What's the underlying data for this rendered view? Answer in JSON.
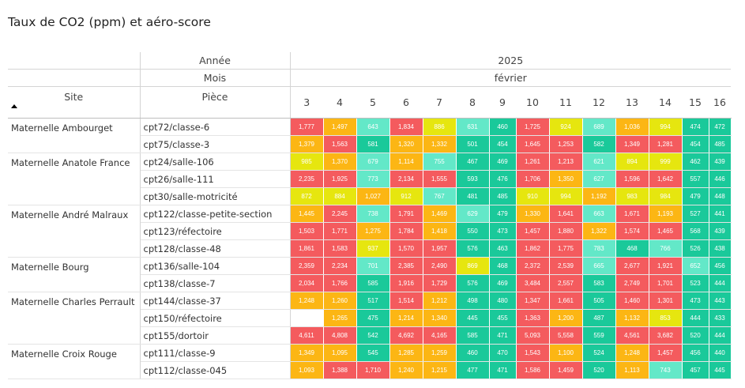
{
  "title": "Taux de CO2 (ppm) et aéro-score",
  "header": {
    "annee_label": "Année",
    "mois_label": "Mois",
    "site_label": "Site",
    "piece_label": "Pièce",
    "year": "2025",
    "month": "février",
    "sort_icon": "sort-ascending-icon"
  },
  "chart_data": {
    "type": "table",
    "columns": [
      "3",
      "4",
      "5",
      "6",
      "7",
      "8",
      "9",
      "10",
      "11",
      "12",
      "13",
      "14",
      "15",
      "16"
    ],
    "level_colors": {
      "red": "#f45b5e",
      "orange": "#fcb614",
      "yellow": "#e6e60f",
      "lightgreen": "#63e8c8",
      "green": "#1ac99a",
      "empty": "#ffffff"
    },
    "groups": [
      {
        "site": "Maternelle Ambourget",
        "rows": [
          {
            "piece": "cpt72/classe-6",
            "values": [
              "1,777",
              "1,497",
              "643",
              "1,834",
              "886",
              "631",
              "460",
              "1,725",
              "924",
              "689",
              "1,036",
              "994",
              "474",
              "472"
            ],
            "levels": [
              "red",
              "orange",
              "lightgreen",
              "red",
              "yellow",
              "lightgreen",
              "green",
              "red",
              "yellow",
              "lightgreen",
              "orange",
              "yellow",
              "green",
              "green"
            ]
          },
          {
            "piece": "cpt75/classe-3",
            "values": [
              "1,379",
              "1,563",
              "581",
              "1,320",
              "1,332",
              "501",
              "454",
              "1,645",
              "1,253",
              "582",
              "1,349",
              "1,281",
              "454",
              "485"
            ],
            "levels": [
              "orange",
              "red",
              "green",
              "orange",
              "orange",
              "green",
              "green",
              "red",
              "red",
              "green",
              "red",
              "red",
              "green",
              "green"
            ]
          }
        ]
      },
      {
        "site": "Maternelle Anatole France",
        "rows": [
          {
            "piece": "cpt24/salle-106",
            "values": [
              "985",
              "1,370",
              "679",
              "1,114",
              "755",
              "467",
              "469",
              "1,261",
              "1,213",
              "621",
              "894",
              "999",
              "462",
              "439"
            ],
            "levels": [
              "yellow",
              "orange",
              "lightgreen",
              "orange",
              "lightgreen",
              "green",
              "green",
              "red",
              "red",
              "lightgreen",
              "yellow",
              "yellow",
              "green",
              "green"
            ]
          },
          {
            "piece": "cpt26/salle-111",
            "values": [
              "2,235",
              "1,925",
              "773",
              "2,134",
              "1,555",
              "593",
              "476",
              "1,706",
              "1,350",
              "627",
              "1,596",
              "1,642",
              "557",
              "446"
            ],
            "levels": [
              "red",
              "red",
              "lightgreen",
              "red",
              "red",
              "green",
              "green",
              "red",
              "orange",
              "lightgreen",
              "red",
              "red",
              "green",
              "green"
            ]
          },
          {
            "piece": "cpt30/salle-motricité",
            "values": [
              "872",
              "884",
              "1,027",
              "912",
              "767",
              "481",
              "485",
              "910",
              "994",
              "1,192",
              "983",
              "984",
              "479",
              "448"
            ],
            "levels": [
              "yellow",
              "yellow",
              "orange",
              "yellow",
              "lightgreen",
              "green",
              "green",
              "yellow",
              "yellow",
              "orange",
              "yellow",
              "yellow",
              "green",
              "green"
            ]
          }
        ]
      },
      {
        "site": "Maternelle André Malraux",
        "rows": [
          {
            "piece": "cpt122/classe-petite-section",
            "values": [
              "1,445",
              "2,245",
              "738",
              "1,791",
              "1,469",
              "629",
              "479",
              "1,330",
              "1,641",
              "663",
              "1,671",
              "1,193",
              "527",
              "441"
            ],
            "levels": [
              "orange",
              "red",
              "lightgreen",
              "red",
              "orange",
              "lightgreen",
              "green",
              "orange",
              "red",
              "lightgreen",
              "red",
              "orange",
              "green",
              "green"
            ]
          },
          {
            "piece": "cpt123/réfectoire",
            "values": [
              "1,503",
              "1,771",
              "1,275",
              "1,784",
              "1,418",
              "550",
              "473",
              "1,457",
              "1,880",
              "1,322",
              "1,574",
              "1,465",
              "568",
              "439"
            ],
            "levels": [
              "red",
              "red",
              "orange",
              "red",
              "orange",
              "green",
              "green",
              "red",
              "red",
              "orange",
              "red",
              "red",
              "green",
              "green"
            ]
          },
          {
            "piece": "cpt128/classe-48",
            "values": [
              "1,861",
              "1,583",
              "937",
              "1,570",
              "1,957",
              "576",
              "463",
              "1,862",
              "1,775",
              "783",
              "468",
              "766",
              "526",
              "438"
            ],
            "levels": [
              "red",
              "red",
              "yellow",
              "red",
              "red",
              "green",
              "green",
              "red",
              "red",
              "lightgreen",
              "green",
              "lightgreen",
              "green",
              "green"
            ]
          }
        ]
      },
      {
        "site": "Maternelle Bourg",
        "rows": [
          {
            "piece": "cpt136/salle-104",
            "values": [
              "2,359",
              "2,234",
              "701",
              "2,385",
              "2,490",
              "869",
              "468",
              "2,372",
              "2,539",
              "665",
              "2,677",
              "1,921",
              "652",
              "456"
            ],
            "levels": [
              "red",
              "red",
              "lightgreen",
              "red",
              "red",
              "yellow",
              "green",
              "red",
              "red",
              "lightgreen",
              "red",
              "red",
              "lightgreen",
              "green"
            ]
          },
          {
            "piece": "cpt138/classe-7",
            "values": [
              "2,034",
              "1,766",
              "585",
              "1,916",
              "1,729",
              "576",
              "469",
              "3,484",
              "2,557",
              "583",
              "2,749",
              "1,701",
              "523",
              "444"
            ],
            "levels": [
              "red",
              "red",
              "green",
              "red",
              "red",
              "green",
              "green",
              "red",
              "red",
              "green",
              "red",
              "red",
              "green",
              "green"
            ]
          }
        ]
      },
      {
        "site": "Maternelle Charles Perrault",
        "rows": [
          {
            "piece": "cpt144/classe-37",
            "values": [
              "1,248",
              "1,260",
              "517",
              "1,514",
              "1,212",
              "498",
              "480",
              "1,347",
              "1,661",
              "505",
              "1,460",
              "1,301",
              "473",
              "443"
            ],
            "levels": [
              "orange",
              "orange",
              "green",
              "red",
              "orange",
              "green",
              "green",
              "red",
              "red",
              "green",
              "red",
              "red",
              "green",
              "green"
            ]
          },
          {
            "piece": "cpt150/réfectoire",
            "values": [
              "",
              "1,265",
              "475",
              "1,214",
              "1,340",
              "445",
              "455",
              "1,363",
              "1,200",
              "487",
              "1,132",
              "853",
              "444",
              "433"
            ],
            "levels": [
              "empty",
              "orange",
              "green",
              "orange",
              "orange",
              "green",
              "green",
              "red",
              "orange",
              "green",
              "orange",
              "yellow",
              "green",
              "green"
            ]
          },
          {
            "piece": "cpt155/dortoir",
            "values": [
              "4,611",
              "4,808",
              "542",
              "4,692",
              "4,165",
              "585",
              "471",
              "5,093",
              "5,558",
              "559",
              "4,561",
              "3,682",
              "520",
              "444"
            ],
            "levels": [
              "red",
              "red",
              "green",
              "red",
              "red",
              "green",
              "green",
              "red",
              "red",
              "green",
              "red",
              "red",
              "green",
              "green"
            ]
          }
        ]
      },
      {
        "site": "Maternelle Croix Rouge",
        "rows": [
          {
            "piece": "cpt111/classe-9",
            "values": [
              "1,349",
              "1,095",
              "545",
              "1,285",
              "1,259",
              "460",
              "470",
              "1,543",
              "1,100",
              "524",
              "1,248",
              "1,457",
              "456",
              "440"
            ],
            "levels": [
              "orange",
              "orange",
              "green",
              "orange",
              "orange",
              "green",
              "green",
              "red",
              "orange",
              "green",
              "orange",
              "red",
              "green",
              "green"
            ]
          },
          {
            "piece": "cpt112/classe-045",
            "values": [
              "1,093",
              "1,388",
              "1,710",
              "1,240",
              "1,215",
              "477",
              "471",
              "1,586",
              "1,459",
              "520",
              "1,113",
              "743",
              "457",
              "445"
            ],
            "levels": [
              "orange",
              "red",
              "red",
              "orange",
              "orange",
              "green",
              "green",
              "red",
              "red",
              "green",
              "orange",
              "lightgreen",
              "green",
              "green"
            ]
          }
        ]
      }
    ]
  }
}
